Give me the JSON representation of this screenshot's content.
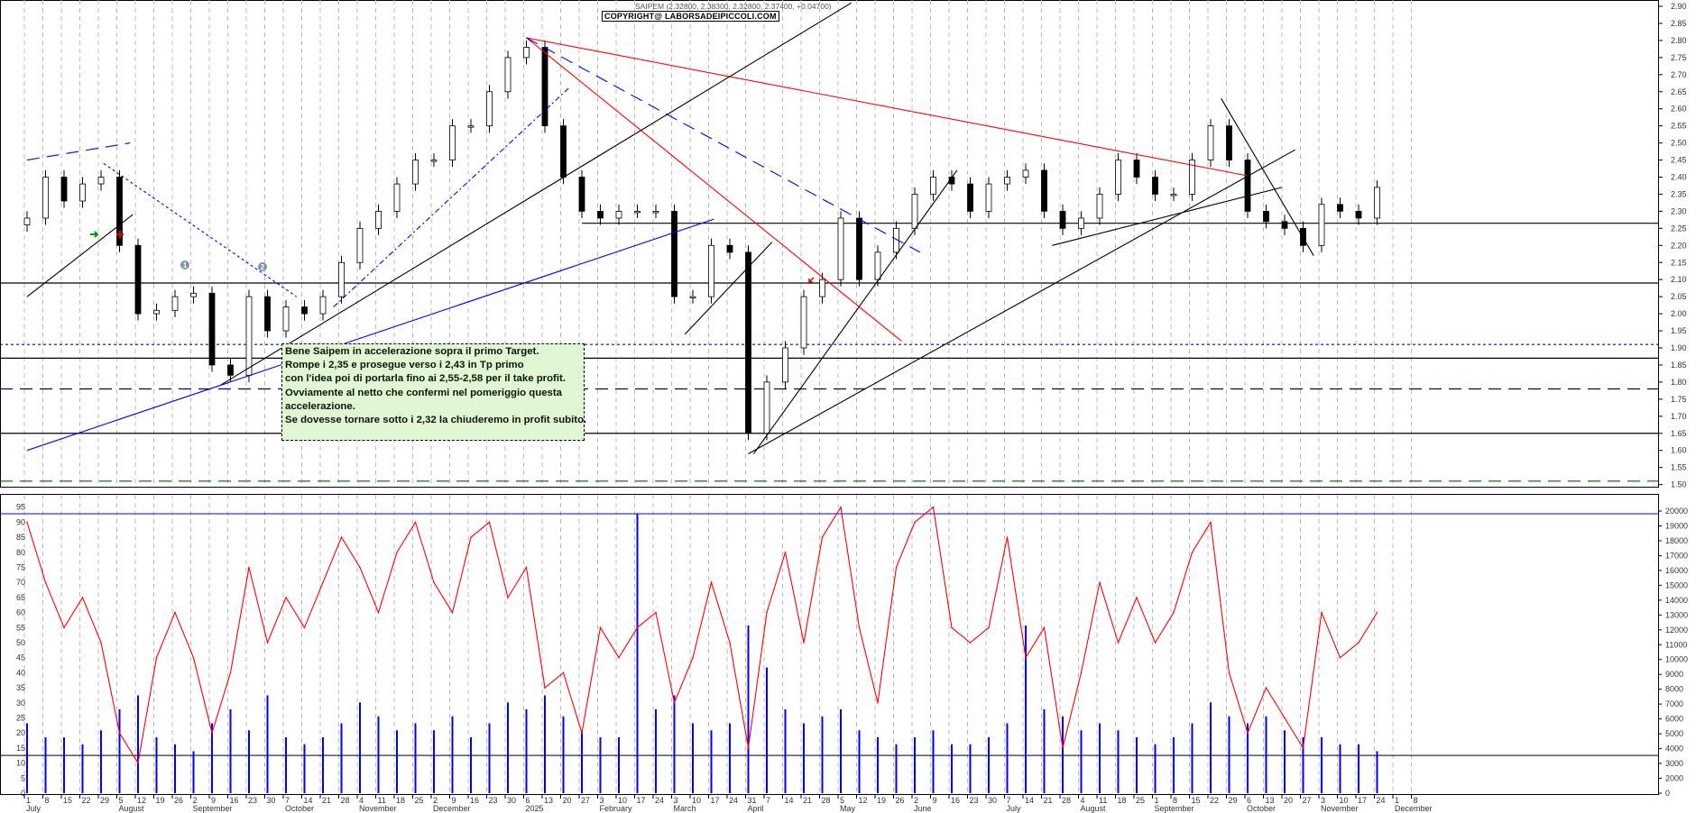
{
  "header": {
    "quote": "SAIPEM (2.32800, 2.38300, 2.32800, 2.37400, +0.04700)",
    "copyright": "COPYRIGHT@ LABORSADEIPICCOLI.COM"
  },
  "note": {
    "lines": [
      "Bene Saipem in accelerazione sopra il primo Target.",
      "Rompe i 2,35 e prosegue verso i 2,43 in Tp primo",
      "con l'idea poi di portarla fino ai 2,55-2,58 per il take profit.",
      "Ovviamente al netto che confermi nel pomeriggio questa",
      "accelerazione.",
      "Se dovesse tornare sotto i 2,32 la chiuderemo in profit subito."
    ]
  },
  "markers": {
    "circle_1": "1",
    "circle_2": "2"
  },
  "colors": {
    "up": "#ffffff",
    "down": "#000000",
    "rsi": "#ff0000",
    "volume": "#0000ff",
    "note_bg": "#dff7d2"
  },
  "chart_data": [
    {
      "type": "candlestick",
      "symbol": "SAIPEM",
      "ylim": [
        1.5,
        2.9
      ],
      "y_ticks": [
        "2.90",
        "2.85",
        "2.80",
        "2.75",
        "2.70",
        "2.65",
        "2.60",
        "2.55",
        "2.50",
        "2.45",
        "2.40",
        "2.35",
        "2.30",
        "2.25",
        "2.20",
        "2.15",
        "2.10",
        "2.05",
        "2.00",
        "1.95",
        "1.90",
        "1.85",
        "1.80",
        "1.75",
        "1.70",
        "1.65",
        "1.60",
        "1.55",
        "1.50"
      ],
      "x_start": "2024-07-01",
      "closes": [
        2.28,
        2.4,
        2.33,
        2.38,
        2.4,
        2.2,
        2.0,
        2.01,
        2.05,
        2.06,
        1.85,
        1.82,
        2.05,
        1.95,
        2.02,
        2.0,
        2.05,
        2.15,
        2.25,
        2.3,
        2.38,
        2.45,
        2.45,
        2.55,
        2.55,
        2.65,
        2.75,
        2.78,
        2.55,
        2.4,
        2.3,
        2.28,
        2.3,
        2.3,
        2.3,
        2.05,
        2.05,
        2.2,
        2.18,
        1.65,
        1.8,
        1.9,
        2.05,
        2.1,
        2.28,
        2.1,
        2.18,
        2.25,
        2.35,
        2.4,
        2.38,
        2.3,
        2.38,
        2.4,
        2.42,
        2.3,
        2.25,
        2.28,
        2.35,
        2.45,
        2.4,
        2.35,
        2.35,
        2.45,
        2.55,
        2.45,
        2.3,
        2.27,
        2.25,
        2.2,
        2.32,
        2.3,
        2.28,
        2.37
      ],
      "horizontal_levels": [
        {
          "price": 2.265,
          "color": "#000000",
          "style": "solid",
          "from": "2025-01-27"
        },
        {
          "price": 2.09,
          "color": "#000000",
          "style": "solid"
        },
        {
          "price": 1.91,
          "color": "#0000ff",
          "style": "dotted"
        },
        {
          "price": 1.87,
          "color": "#000000",
          "style": "solid"
        },
        {
          "price": 1.78,
          "color": "#000080",
          "style": "dashed"
        },
        {
          "price": 1.65,
          "color": "#000000",
          "style": "solid"
        },
        {
          "price": 1.51,
          "color": "#006400",
          "style": "dashed"
        }
      ],
      "trendlines": [
        {
          "from": [
            "2025-01-06",
            2.808
          ],
          "to": [
            "2025-10-06",
            2.404
          ],
          "color": "#ff0000",
          "style": "solid"
        },
        {
          "from": [
            "2025-01-06",
            2.808
          ],
          "to": [
            "2025-05-28",
            1.92
          ],
          "color": "#ff0000",
          "style": "solid"
        },
        {
          "from": [
            "2025-01-06",
            2.808
          ],
          "to": [
            "2025-06-04",
            2.18
          ],
          "color": "#0000ff",
          "style": "dashed"
        },
        {
          "from": [
            "2024-09-12",
            1.79
          ],
          "to": [
            "2025-05-09",
            2.91
          ],
          "color": "#000000",
          "style": "solid"
        },
        {
          "from": [
            "2024-07-01",
            2.05
          ],
          "to": [
            "2024-08-10",
            2.29
          ],
          "color": "#000000",
          "style": "solid"
        },
        {
          "from": [
            "2024-07-01",
            1.6
          ],
          "to": [
            "2025-03-18",
            2.277
          ],
          "color": "#0000ff",
          "style": "solid"
        },
        {
          "from": [
            "2024-07-01",
            2.45
          ],
          "to": [
            "2024-08-09",
            2.5
          ],
          "color": "#0000ff",
          "style": "dashed"
        },
        {
          "from": [
            "2024-07-30",
            2.44
          ],
          "to": [
            "2024-10-11",
            2.05
          ],
          "color": "#0000ff",
          "style": "dotted"
        },
        {
          "from": [
            "2024-10-25",
            2.02
          ],
          "to": [
            "2025-01-22",
            2.66
          ],
          "color": "#0000ff",
          "style": "dashdot"
        },
        {
          "from": [
            "2025-04-02",
            1.59
          ],
          "to": [
            "2025-06-18",
            2.42
          ],
          "color": "#000000",
          "style": "solid"
        },
        {
          "from": [
            "2025-03-31",
            1.59
          ],
          "to": [
            "2025-10-24",
            2.48
          ],
          "color": "#000000",
          "style": "solid"
        },
        {
          "from": [
            "2025-07-24",
            2.2
          ],
          "to": [
            "2025-10-19",
            2.37
          ],
          "color": "#000000",
          "style": "solid"
        },
        {
          "from": [
            "2025-03-07",
            1.94
          ],
          "to": [
            "2025-04-09",
            2.21
          ],
          "color": "#000000",
          "style": "solid"
        },
        {
          "from": [
            "2025-09-26",
            2.63
          ],
          "to": [
            "2025-10-31",
            2.17
          ],
          "color": "#000000",
          "style": "solid"
        }
      ]
    },
    {
      "type": "line+bar",
      "oscillator_ylim": [
        0,
        95
      ],
      "oscillator_ticks": [
        "95",
        "90",
        "85",
        "80",
        "75",
        "70",
        "65",
        "60",
        "55",
        "50",
        "45",
        "40",
        "35",
        "30",
        "25",
        "20",
        "15",
        "10",
        "5",
        "0"
      ],
      "volume_ticks": [
        "20000",
        "19000",
        "18000",
        "17000",
        "16000",
        "15000",
        "14000",
        "13000",
        "12000",
        "11000",
        "10000",
        "9000",
        "8000",
        "7000",
        "6000",
        "5000",
        "4000",
        "3000",
        "2000",
        "0"
      ],
      "oscillator": [
        90,
        70,
        55,
        65,
        50,
        20,
        10,
        45,
        60,
        45,
        20,
        40,
        75,
        50,
        65,
        55,
        70,
        85,
        75,
        60,
        80,
        90,
        70,
        60,
        85,
        90,
        65,
        75,
        35,
        40,
        20,
        55,
        45,
        55,
        60,
        30,
        45,
        70,
        50,
        15,
        60,
        80,
        50,
        85,
        95,
        55,
        30,
        75,
        90,
        95,
        55,
        50,
        55,
        85,
        45,
        55,
        15,
        40,
        70,
        50,
        65,
        50,
        60,
        80,
        90,
        40,
        20,
        35,
        25,
        15,
        60,
        45,
        50,
        60
      ],
      "volume": [
        5000,
        4000,
        4000,
        3500,
        4500,
        6000,
        7000,
        4000,
        3500,
        3000,
        5000,
        6000,
        4500,
        7000,
        4000,
        3500,
        4000,
        5000,
        6500,
        5500,
        4500,
        5000,
        4500,
        5500,
        4000,
        5000,
        6500,
        6000,
        7000,
        5500,
        4500,
        4000,
        4000,
        20000,
        6000,
        7000,
        5000,
        4500,
        5000,
        12000,
        9000,
        6000,
        5000,
        5500,
        6000,
        4500,
        4000,
        3500,
        4000,
        4500,
        3500,
        3500,
        4000,
        5000,
        12000,
        6000,
        5500,
        4500,
        5000,
        4500,
        4000,
        3500,
        4000,
        5000,
        6500,
        5500,
        5000,
        5500,
        4500,
        4000,
        4000,
        3500,
        3500,
        3000
      ],
      "ref_levels_volume": [
        20000,
        2700
      ]
    }
  ],
  "time_axis": {
    "months": [
      {
        "label": "July",
        "week": 0
      },
      {
        "label": "August",
        "week": 5
      },
      {
        "label": "September",
        "week": 9
      },
      {
        "label": "October",
        "week": 14
      },
      {
        "label": "November",
        "week": 18
      },
      {
        "label": "December",
        "week": 22
      },
      {
        "label": "2025",
        "week": 27
      },
      {
        "label": "February",
        "week": 31
      },
      {
        "label": "March",
        "week": 35
      },
      {
        "label": "April",
        "week": 39
      },
      {
        "label": "May",
        "week": 44
      },
      {
        "label": "June",
        "week": 48
      },
      {
        "label": "July",
        "week": 53
      },
      {
        "label": "August",
        "week": 57
      },
      {
        "label": "September",
        "week": 61
      },
      {
        "label": "October",
        "week": 66
      },
      {
        "label": "November",
        "week": 70
      },
      {
        "label": "December",
        "week": 74
      }
    ],
    "days": [
      "1",
      "8",
      "15",
      "22",
      "29",
      "5",
      "12",
      "19",
      "26",
      "2",
      "9",
      "16",
      "23",
      "30",
      "7",
      "14",
      "21",
      "28",
      "4",
      "11",
      "18",
      "25",
      "2",
      "9",
      "16",
      "23",
      "30",
      "6",
      "13",
      "20",
      "27",
      "3",
      "10",
      "17",
      "24",
      "3",
      "10",
      "17",
      "24",
      "31",
      "7",
      "14",
      "21",
      "28",
      "5",
      "12",
      "19",
      "26",
      "2",
      "9",
      "16",
      "23",
      "30",
      "7",
      "14",
      "21",
      "28",
      "4",
      "11",
      "18",
      "25",
      "1",
      "8",
      "15",
      "22",
      "29",
      "6",
      "13",
      "20",
      "27",
      "3",
      "10",
      "17",
      "24",
      "1",
      "8"
    ]
  }
}
